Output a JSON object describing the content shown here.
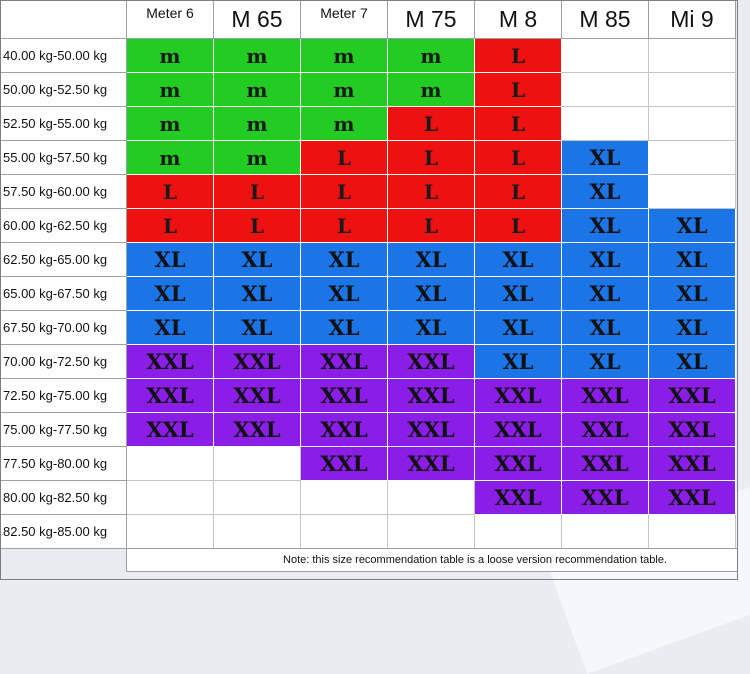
{
  "columns": [
    "Meter 6",
    "M 65",
    "Meter 7",
    "M 75",
    "M 8",
    "M 85",
    "Mi 9"
  ],
  "rows": [
    {
      "label": "40.00 kg-50.00 kg",
      "cells": [
        "m",
        "m",
        "m",
        "m",
        "L",
        "",
        ""
      ]
    },
    {
      "label": "50.00 kg-52.50 kg",
      "cells": [
        "m",
        "m",
        "m",
        "m",
        "L",
        "",
        ""
      ]
    },
    {
      "label": "52.50 kg-55.00 kg",
      "cells": [
        "m",
        "m",
        "m",
        "L",
        "L",
        "",
        ""
      ]
    },
    {
      "label": "55.00 kg-57.50 kg",
      "cells": [
        "m",
        "m",
        "L",
        "L",
        "L",
        "XL",
        ""
      ]
    },
    {
      "label": "57.50 kg-60.00 kg",
      "cells": [
        "L",
        "L",
        "L",
        "L",
        "L",
        "XL",
        ""
      ]
    },
    {
      "label": "60.00 kg-62.50 kg",
      "cells": [
        "L",
        "L",
        "L",
        "L",
        "L",
        "XL",
        "XL"
      ]
    },
    {
      "label": "62.50 kg-65.00 kg",
      "cells": [
        "XL",
        "XL",
        "XL",
        "XL",
        "XL",
        "XL",
        "XL"
      ]
    },
    {
      "label": "65.00 kg-67.50 kg",
      "cells": [
        "XL",
        "XL",
        "XL",
        "XL",
        "XL",
        "XL",
        "XL"
      ]
    },
    {
      "label": "67.50 kg-70.00 kg",
      "cells": [
        "XL",
        "XL",
        "XL",
        "XL",
        "XL",
        "XL",
        "XL"
      ]
    },
    {
      "label": "70.00 kg-72.50 kg",
      "cells": [
        "XXL",
        "XXL",
        "XXL",
        "XXL",
        "XL",
        "XL",
        "XL"
      ]
    },
    {
      "label": "72.50 kg-75.00 kg",
      "cells": [
        "XXL",
        "XXL",
        "XXL",
        "XXL",
        "XXL",
        "XXL",
        "XXL"
      ]
    },
    {
      "label": "75.00 kg-77.50 kg",
      "cells": [
        "XXL",
        "XXL",
        "XXL",
        "XXL",
        "XXL",
        "XXL",
        "XXL"
      ]
    },
    {
      "label": "77.50 kg-80.00 kg",
      "cells": [
        "",
        "",
        "XXL",
        "XXL",
        "XXL",
        "XXL",
        "XXL"
      ]
    },
    {
      "label": "80.00 kg-82.50 kg",
      "cells": [
        "",
        "",
        "",
        "",
        "XXL",
        "XXL",
        "XXL"
      ]
    },
    {
      "label": "82.50 kg-85.00 kg",
      "cells": [
        "",
        "",
        "",
        "",
        "",
        "",
        ""
      ]
    }
  ],
  "note": "Note: this size recommendation table is a loose version recommendation table.",
  "colors": {
    "m": "#22cc22",
    "L": "#ee1111",
    "XL": "#1b75e6",
    "XXL": "#8a1ee6"
  }
}
